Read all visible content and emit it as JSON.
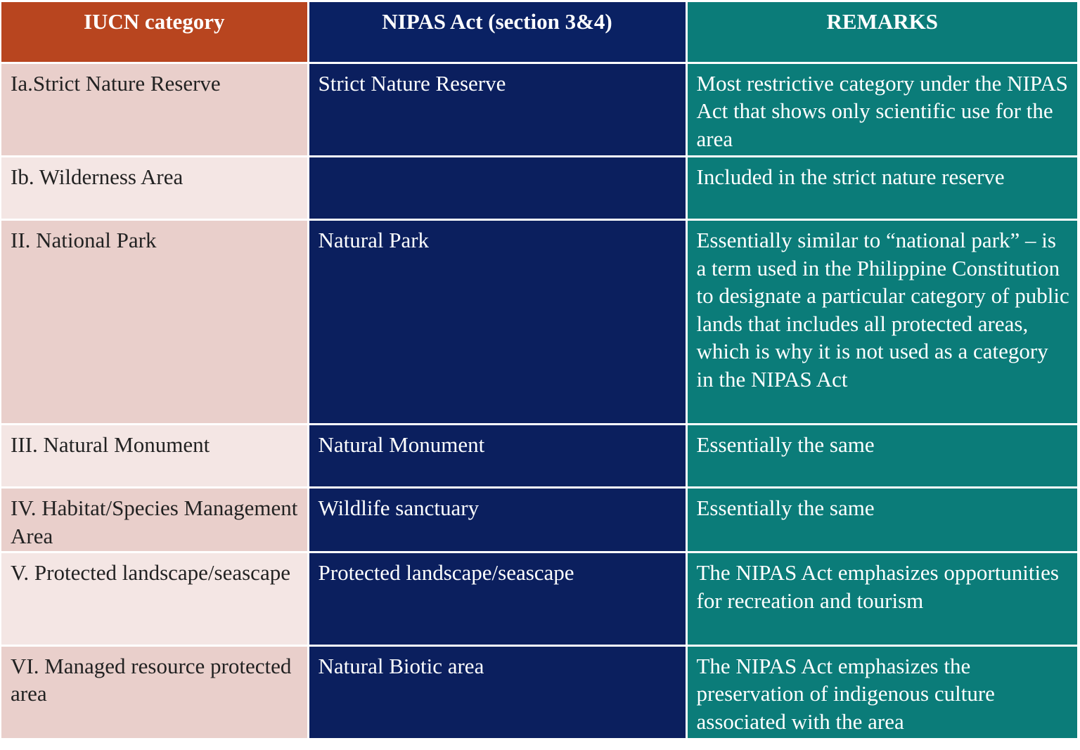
{
  "headers": {
    "iucn": "IUCN category",
    "nipas": "NIPAS Act (section 3&4)",
    "remarks": "REMARKS"
  },
  "rows": [
    {
      "iucn": "Ia.Strict Nature Reserve",
      "nipas": "Strict Nature Reserve",
      "remarks": "Most restrictive category under the NIPAS Act that shows only scientific use for the area"
    },
    {
      "iucn": "Ib. Wilderness Area",
      "nipas": "",
      "remarks": "Included in the strict nature reserve"
    },
    {
      "iucn": "II. National Park",
      "nipas": "Natural Park",
      "remarks": "Essentially similar to “national park” – is a term used in the Philippine Constitution to designate a particular category of public lands that includes all protected areas, which is why it is not used as a category in the NIPAS Act"
    },
    {
      "iucn": "III. Natural Monument",
      "nipas": "Natural Monument",
      "remarks": "Essentially the same"
    },
    {
      "iucn": "IV. Habitat/Species Management Area",
      "nipas": "Wildlife sanctuary",
      "remarks": "Essentially the same"
    },
    {
      "iucn": "V. Protected landscape/seascape",
      "nipas": "Protected landscape/seascape",
      "remarks": "The NIPAS Act emphasizes opportunities for recreation and tourism"
    },
    {
      "iucn": "VI. Managed resource protected area",
      "nipas": "Natural Biotic area",
      "remarks": "The NIPAS Act emphasizes the preservation of indigenous culture associated with the area"
    }
  ]
}
